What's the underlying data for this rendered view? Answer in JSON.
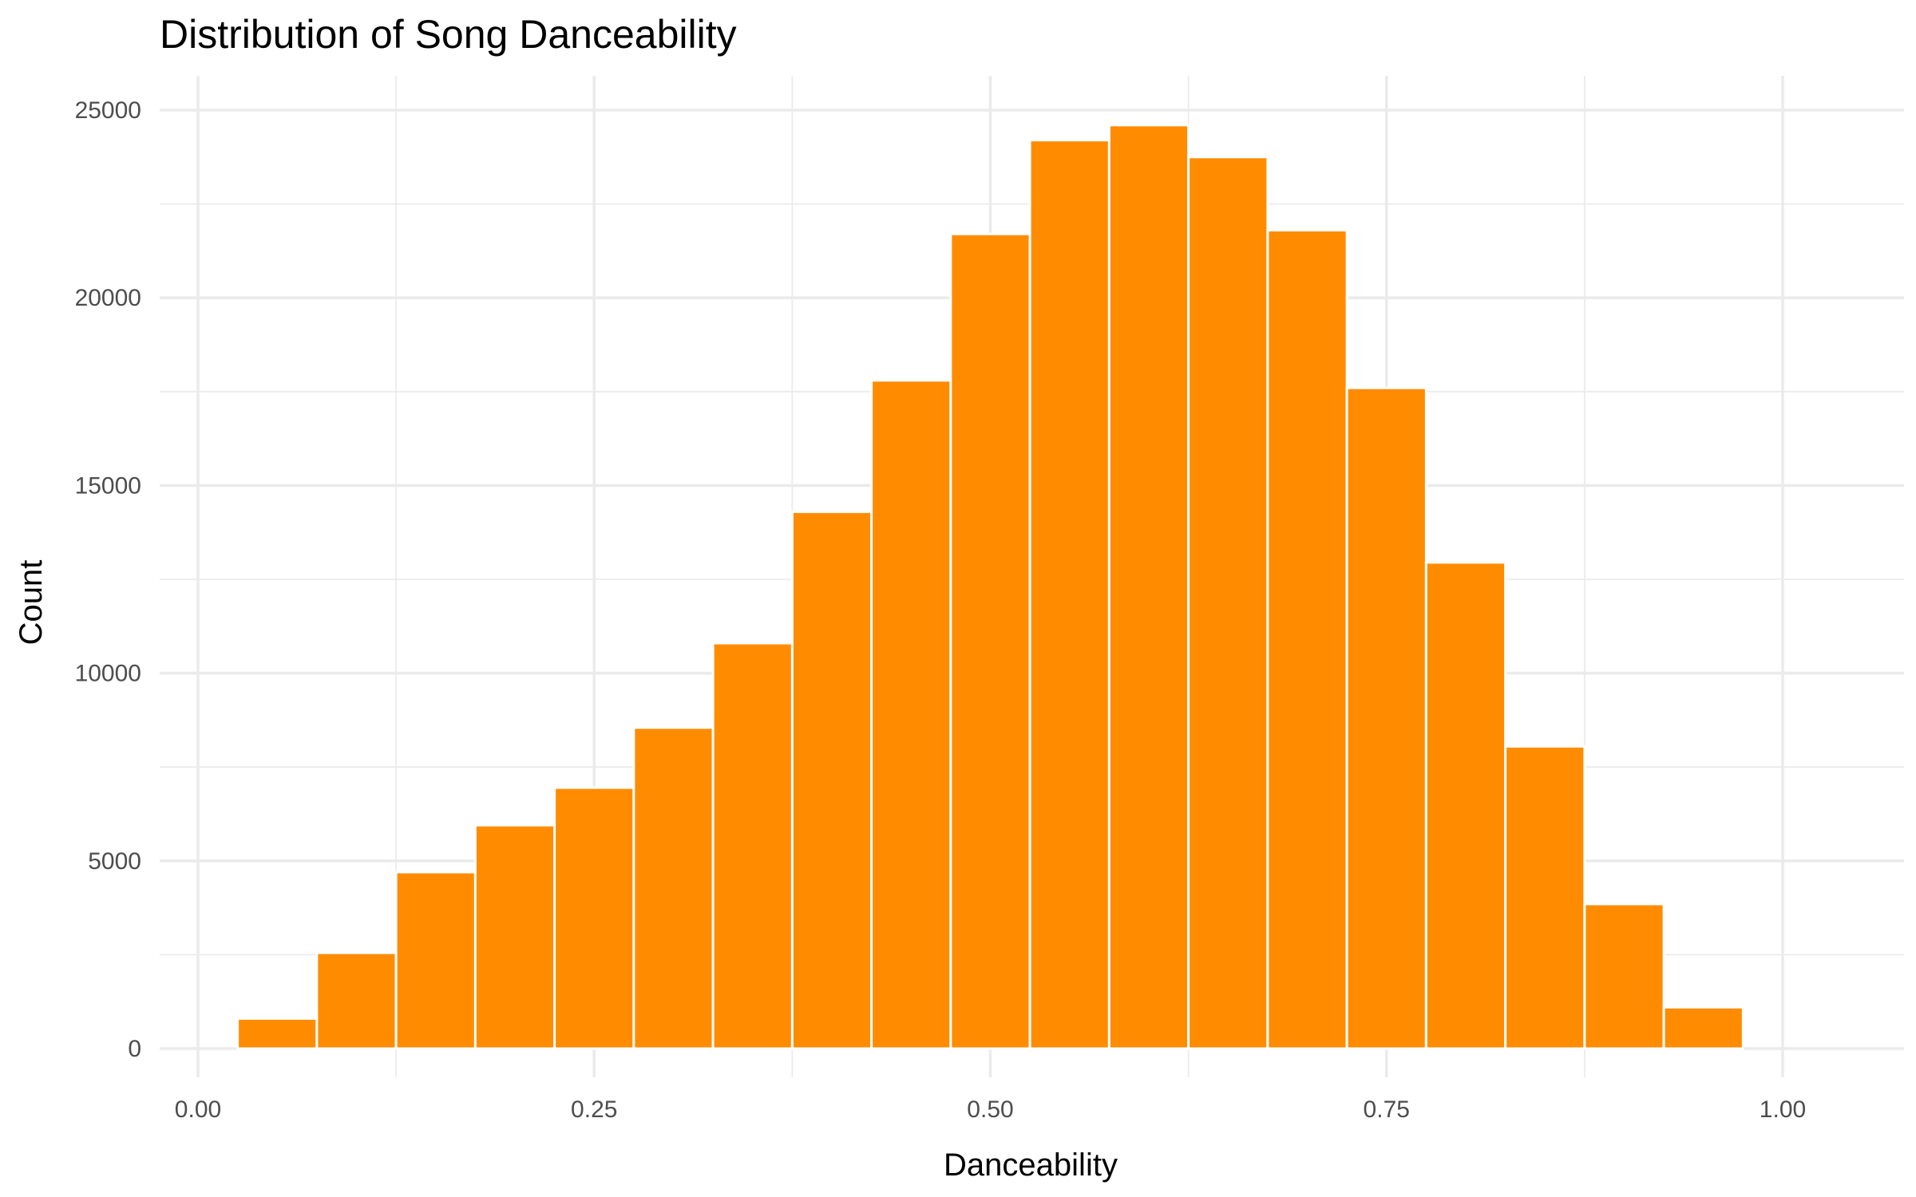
{
  "chart_data": {
    "type": "bar",
    "title": "Distribution of Song Danceability",
    "xlabel": "Danceability",
    "ylabel": "Count",
    "xlim": [
      -0.025,
      1.025
    ],
    "ylim": [
      0,
      25000
    ],
    "x_ticks": [
      "0.00",
      "0.25",
      "0.50",
      "0.75",
      "1.00"
    ],
    "y_ticks": [
      "0",
      "5000",
      "10000",
      "15000",
      "20000",
      "25000"
    ],
    "grid": true,
    "legend": "none",
    "bar_color": "#FF8C00",
    "bar_outline": "#ffffff",
    "bin_width": 0.05,
    "bin_centers": [
      0.05,
      0.1,
      0.15,
      0.2,
      0.25,
      0.3,
      0.35,
      0.4,
      0.45,
      0.5,
      0.55,
      0.6,
      0.65,
      0.7,
      0.75,
      0.8,
      0.85,
      0.9,
      0.95
    ],
    "values": [
      800,
      2550,
      4700,
      5950,
      6950,
      8550,
      10800,
      14300,
      17800,
      21700,
      24200,
      24600,
      23750,
      21800,
      17600,
      12950,
      8050,
      3850,
      1100
    ]
  }
}
